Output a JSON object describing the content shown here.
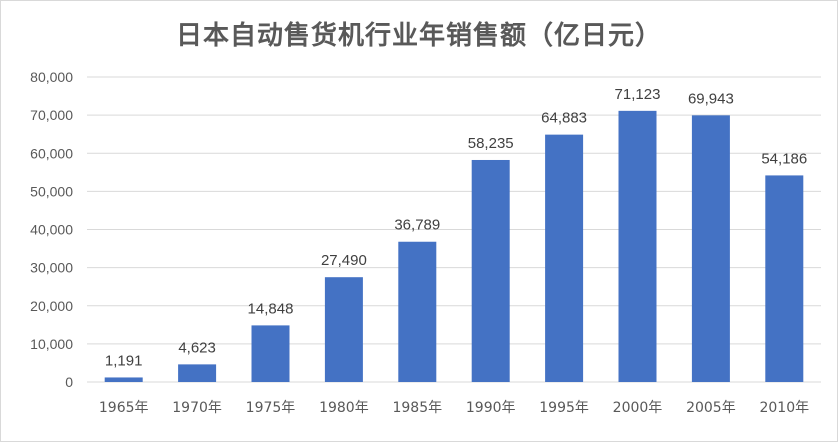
{
  "chart_data": {
    "type": "bar",
    "title": "日本自动售货机行业年销售额（亿日元）",
    "xlabel": "",
    "ylabel": "",
    "categories": [
      "1965年",
      "1970年",
      "1975年",
      "1980年",
      "1985年",
      "1990年",
      "1995年",
      "2000年",
      "2005年",
      "2010年"
    ],
    "values": [
      1191,
      4623,
      14848,
      27490,
      36789,
      58235,
      64883,
      71123,
      69943,
      54186
    ],
    "value_labels": [
      "1,191",
      "4,623",
      "14,848",
      "27,490",
      "36,789",
      "58,235",
      "64,883",
      "71,123",
      "69,943",
      "54,186"
    ],
    "ylim": [
      0,
      80000
    ],
    "yticks": [
      0,
      10000,
      20000,
      30000,
      40000,
      50000,
      60000,
      70000,
      80000
    ],
    "ytick_labels": [
      "0",
      "10,000",
      "20,000",
      "30,000",
      "40,000",
      "50,000",
      "60,000",
      "70,000",
      "80,000"
    ],
    "grid": true,
    "legend": "none",
    "bar_color": "#4472C4",
    "grid_color": "#d9d9d9"
  }
}
